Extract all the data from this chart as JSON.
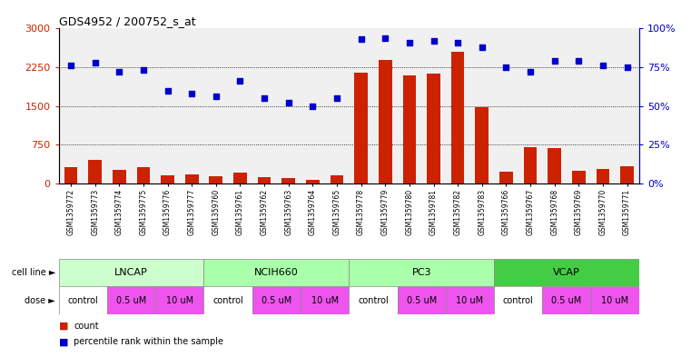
{
  "title": "GDS4952 / 200752_s_at",
  "samples": [
    "GSM1359772",
    "GSM1359773",
    "GSM1359774",
    "GSM1359775",
    "GSM1359776",
    "GSM1359777",
    "GSM1359760",
    "GSM1359761",
    "GSM1359762",
    "GSM1359763",
    "GSM1359764",
    "GSM1359765",
    "GSM1359778",
    "GSM1359779",
    "GSM1359780",
    "GSM1359781",
    "GSM1359782",
    "GSM1359783",
    "GSM1359766",
    "GSM1359767",
    "GSM1359768",
    "GSM1359769",
    "GSM1359770",
    "GSM1359771"
  ],
  "counts": [
    320,
    450,
    270,
    310,
    160,
    175,
    145,
    210,
    130,
    110,
    75,
    155,
    2150,
    2400,
    2100,
    2130,
    2550,
    1480,
    220,
    700,
    680,
    250,
    290,
    330
  ],
  "percentiles": [
    76,
    78,
    72,
    73,
    60,
    58,
    56,
    66,
    55,
    52,
    50,
    55,
    93,
    94,
    91,
    92,
    91,
    88,
    75,
    72,
    79,
    79,
    76,
    75
  ],
  "bar_color": "#cc2200",
  "scatter_color": "#0000cc",
  "ylim_left": [
    0,
    3000
  ],
  "ylim_right": [
    0,
    100
  ],
  "yticks_left": [
    0,
    750,
    1500,
    2250,
    3000
  ],
  "yticks_right": [
    0,
    25,
    50,
    75,
    100
  ],
  "ytick_labels_left": [
    "0",
    "750",
    "1500",
    "2250",
    "3000"
  ],
  "ytick_labels_right": [
    "0%",
    "25%",
    "50%",
    "75%",
    "100%"
  ],
  "bg_color": "#ffffff",
  "plot_bg": "#f0f0f0",
  "cell_lines": [
    {
      "label": "LNCAP",
      "start": 0,
      "end": 6,
      "color": "#ccffcc"
    },
    {
      "label": "NCIH660",
      "start": 6,
      "end": 12,
      "color": "#aaffaa"
    },
    {
      "label": "PC3",
      "start": 12,
      "end": 18,
      "color": "#aaffaa"
    },
    {
      "label": "VCAP",
      "start": 18,
      "end": 24,
      "color": "#44cc44"
    }
  ],
  "doses": [
    {
      "label": "control",
      "start": 0,
      "end": 2,
      "color": "#ffffff"
    },
    {
      "label": "0.5 uM",
      "start": 2,
      "end": 4,
      "color": "#ee55ee"
    },
    {
      "label": "10 uM",
      "start": 4,
      "end": 6,
      "color": "#ee55ee"
    },
    {
      "label": "control",
      "start": 6,
      "end": 8,
      "color": "#ffffff"
    },
    {
      "label": "0.5 uM",
      "start": 8,
      "end": 10,
      "color": "#ee55ee"
    },
    {
      "label": "10 uM",
      "start": 10,
      "end": 12,
      "color": "#ee55ee"
    },
    {
      "label": "control",
      "start": 12,
      "end": 14,
      "color": "#ffffff"
    },
    {
      "label": "0.5 uM",
      "start": 14,
      "end": 16,
      "color": "#ee55ee"
    },
    {
      "label": "10 uM",
      "start": 16,
      "end": 18,
      "color": "#ee55ee"
    },
    {
      "label": "control",
      "start": 18,
      "end": 20,
      "color": "#ffffff"
    },
    {
      "label": "0.5 uM",
      "start": 20,
      "end": 22,
      "color": "#ee55ee"
    },
    {
      "label": "10 uM",
      "start": 22,
      "end": 24,
      "color": "#ee55ee"
    }
  ]
}
